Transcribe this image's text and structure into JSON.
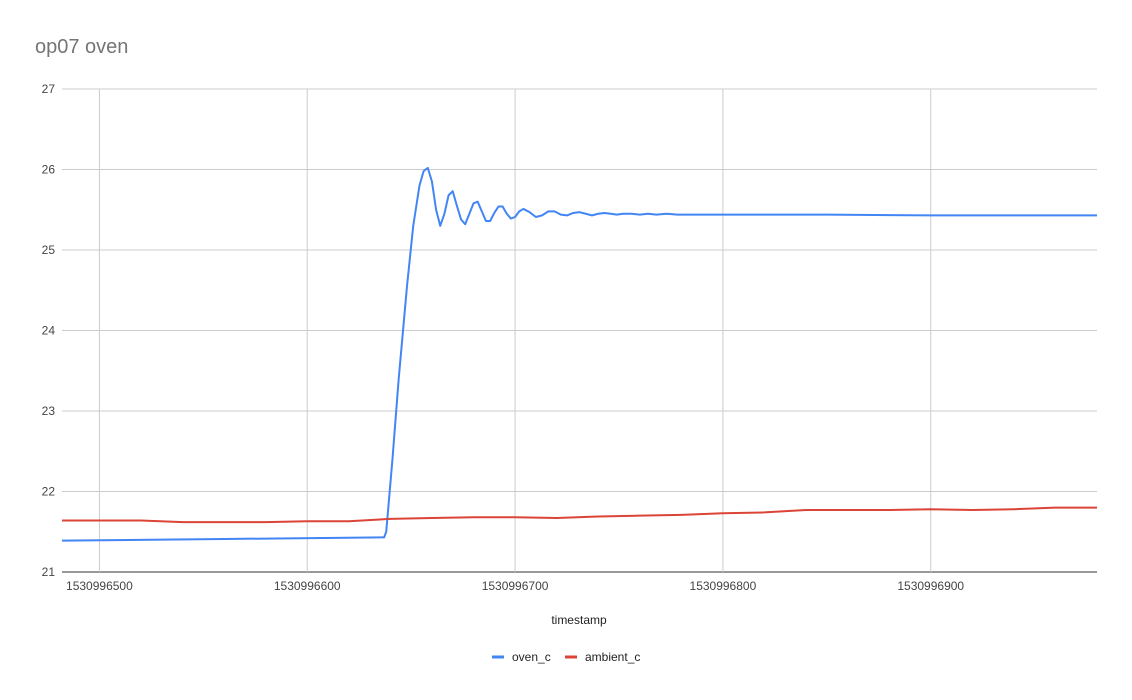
{
  "chart_data": {
    "type": "line",
    "title": "op07 oven",
    "xlabel": "timestamp",
    "ylabel": "",
    "xlim": [
      1530996482,
      1530996980
    ],
    "ylim": [
      21,
      27
    ],
    "y_ticks": [
      21,
      22,
      23,
      24,
      25,
      26,
      27
    ],
    "x_ticks": [
      1530996500,
      1530996600,
      1530996700,
      1530996800,
      1530996900
    ],
    "x_tick_labels": [
      "1530996500",
      "1530996600",
      "1530996700",
      "1530996800",
      "1530996900"
    ],
    "grid": true,
    "legend_position": "bottom",
    "series": [
      {
        "name": "oven_c",
        "color": "#4285f4",
        "x": [
          1530996482,
          1530996560,
          1530996637,
          1530996638,
          1530996641,
          1530996644,
          1530996648,
          1530996651,
          1530996654,
          1530996656,
          1530996658,
          1530996660,
          1530996662,
          1530996664,
          1530996666,
          1530996668,
          1530996670,
          1530996672,
          1530996674,
          1530996676,
          1530996678,
          1530996680,
          1530996682,
          1530996684,
          1530996686,
          1530996688,
          1530996690,
          1530996692,
          1530996694,
          1530996696,
          1530996698,
          1530996700,
          1530996702,
          1530996704,
          1530996707,
          1530996710,
          1530996713,
          1530996716,
          1530996719,
          1530996722,
          1530996725,
          1530996728,
          1530996731,
          1530996734,
          1530996737,
          1530996740,
          1530996743,
          1530996746,
          1530996749,
          1530996752,
          1530996756,
          1530996760,
          1530996764,
          1530996768,
          1530996773,
          1530996778,
          1530996790,
          1530996800,
          1530996850,
          1530996900,
          1530996950,
          1530996980
        ],
        "values": [
          21.39,
          21.41,
          21.43,
          21.5,
          22.4,
          23.4,
          24.55,
          25.3,
          25.8,
          25.98,
          26.02,
          25.85,
          25.5,
          25.3,
          25.45,
          25.68,
          25.73,
          25.55,
          25.38,
          25.32,
          25.45,
          25.58,
          25.6,
          25.48,
          25.36,
          25.36,
          25.46,
          25.54,
          25.54,
          25.45,
          25.39,
          25.41,
          25.48,
          25.51,
          25.47,
          25.41,
          25.43,
          25.48,
          25.48,
          25.44,
          25.43,
          25.46,
          25.47,
          25.45,
          25.43,
          25.45,
          25.46,
          25.45,
          25.44,
          25.45,
          25.45,
          25.44,
          25.45,
          25.44,
          25.45,
          25.44,
          25.44,
          25.44,
          25.44,
          25.43,
          25.43,
          25.43
        ]
      },
      {
        "name": "ambient_c",
        "color": "#db4437",
        "x": [
          1530996482,
          1530996500,
          1530996520,
          1530996540,
          1530996560,
          1530996580,
          1530996600,
          1530996620,
          1530996640,
          1530996660,
          1530996680,
          1530996700,
          1530996720,
          1530996740,
          1530996760,
          1530996780,
          1530996800,
          1530996820,
          1530996840,
          1530996860,
          1530996880,
          1530996900,
          1530996920,
          1530996940,
          1530996960,
          1530996980
        ],
        "values": [
          21.64,
          21.64,
          21.64,
          21.62,
          21.62,
          21.62,
          21.63,
          21.63,
          21.66,
          21.67,
          21.68,
          21.68,
          21.67,
          21.69,
          21.7,
          21.71,
          21.73,
          21.74,
          21.77,
          21.77,
          21.77,
          21.78,
          21.77,
          21.78,
          21.8,
          21.8
        ]
      }
    ]
  }
}
